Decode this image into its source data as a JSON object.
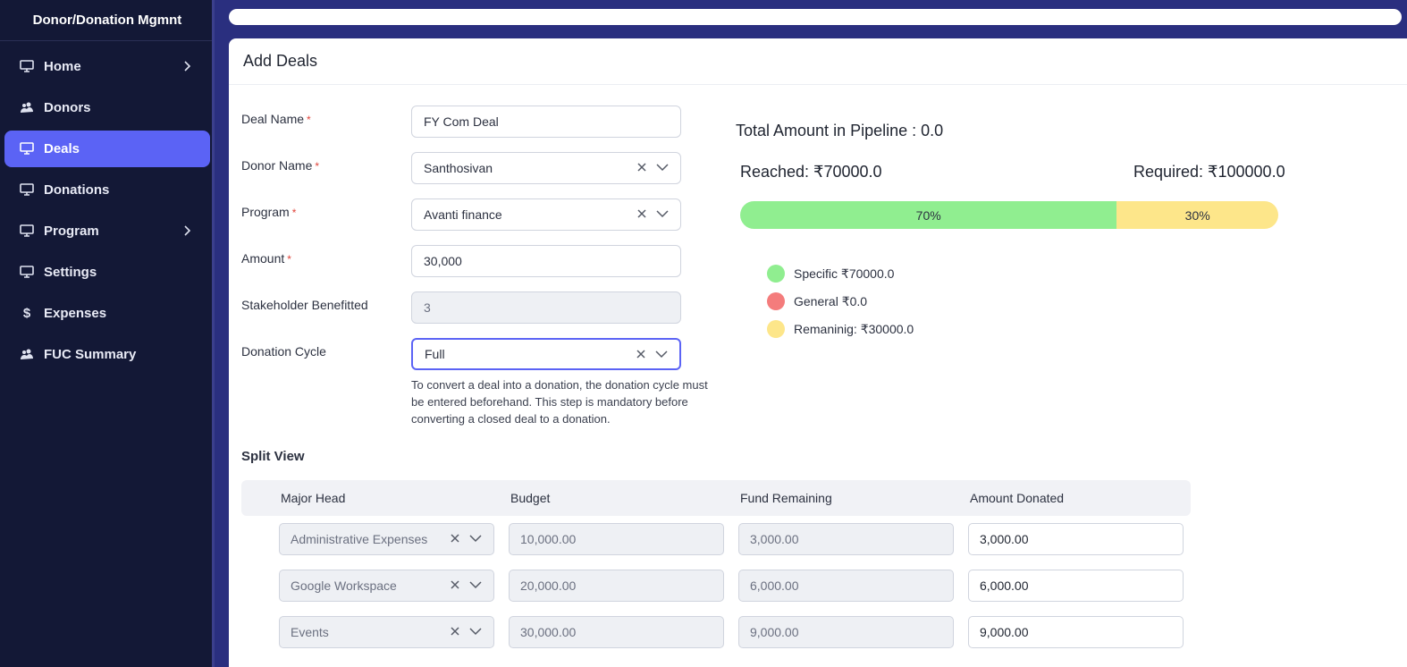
{
  "sidebar": {
    "brand": "Donor/Donation Mgmnt",
    "items": [
      {
        "label": "Home",
        "icon": "monitor-icon",
        "has_chevron": true,
        "active": false
      },
      {
        "label": "Donors",
        "icon": "donors-icon",
        "has_chevron": false,
        "active": false
      },
      {
        "label": "Deals",
        "icon": "monitor-icon",
        "has_chevron": false,
        "active": true
      },
      {
        "label": "Donations",
        "icon": "monitor-icon",
        "has_chevron": false,
        "active": false
      },
      {
        "label": "Program",
        "icon": "monitor-icon",
        "has_chevron": true,
        "active": false
      },
      {
        "label": "Settings",
        "icon": "monitor-icon",
        "has_chevron": false,
        "active": false
      },
      {
        "label": "Expenses",
        "icon": "dollar-icon",
        "has_chevron": false,
        "active": false
      },
      {
        "label": "FUC Summary",
        "icon": "donors-icon",
        "has_chevron": false,
        "active": false
      }
    ]
  },
  "page": {
    "title": "Add Deals"
  },
  "form": {
    "deal_name": {
      "label": "Deal Name",
      "value": "FY Com Deal"
    },
    "donor_name": {
      "label": "Donor Name",
      "value": "Santhosivan"
    },
    "program": {
      "label": "Program",
      "value": "Avanti finance"
    },
    "amount": {
      "label": "Amount",
      "value": "30,000"
    },
    "stakeholder": {
      "label": "Stakeholder Benefitted",
      "value": "3"
    },
    "donation_cycle": {
      "label": "Donation Cycle",
      "value": "Full"
    },
    "hint": "To convert a deal into a donation, the donation cycle must be entered beforehand. This step is mandatory before converting a closed deal to a donation."
  },
  "pipeline": {
    "title": "Total Amount in Pipeline : 0.0",
    "reached": "Reached: ₹70000.0",
    "required": "Required: ₹100000.0",
    "progress": {
      "reached_pct": 70,
      "reached_label": "70%",
      "remaining_pct": 30,
      "remaining_label": "30%"
    },
    "legend": [
      {
        "label": "Specific ₹70000.0",
        "color": "#90ee90"
      },
      {
        "label": "General ₹0.0",
        "color": "#f47c7c"
      },
      {
        "label": "Remaninig: ₹30000.0",
        "color": "#fde68a"
      }
    ]
  },
  "split_view": {
    "title": "Split View",
    "columns": [
      "Major Head",
      "Budget",
      "Fund Remaining",
      "Amount Donated"
    ],
    "rows": [
      {
        "major_head": "Administrative Expenses",
        "budget": "10,000.00",
        "fund_remaining": "3,000.00",
        "amount_donated": "3,000.00"
      },
      {
        "major_head": "Google Workspace",
        "budget": "20,000.00",
        "fund_remaining": "6,000.00",
        "amount_donated": "6,000.00"
      },
      {
        "major_head": "Events",
        "budget": "30,000.00",
        "fund_remaining": "9,000.00",
        "amount_donated": "9,000.00"
      }
    ]
  }
}
